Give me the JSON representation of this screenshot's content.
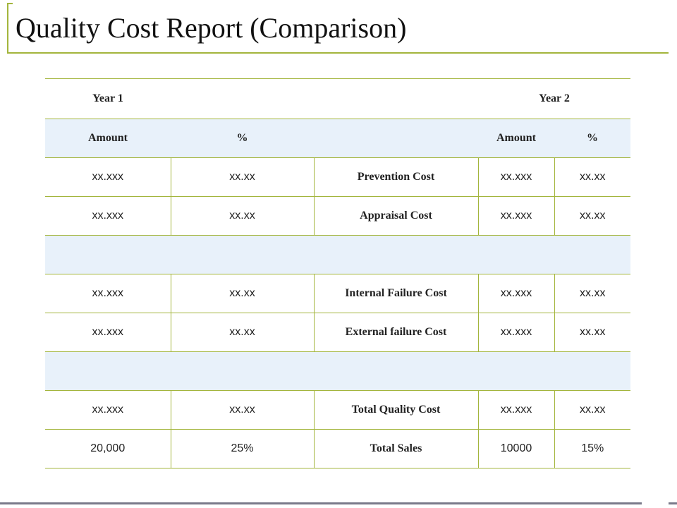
{
  "title": "Quality Cost Report (Comparison)",
  "headers": {
    "year1": "Year 1",
    "year2": "Year 2",
    "amount": "Amount",
    "percent": "%"
  },
  "rows": [
    {
      "y1_amount": "xx.xxx",
      "y1_pct": "xx.xx",
      "label": "Prevention Cost",
      "y2_amount": "xx.xxx",
      "y2_pct": "xx.xx"
    },
    {
      "y1_amount": "xx.xxx",
      "y1_pct": "xx.xx",
      "label": "Appraisal Cost",
      "y2_amount": "xx.xxx",
      "y2_pct": "xx.xx"
    },
    {
      "y1_amount": "xx.xxx",
      "y1_pct": "xx.xx",
      "label": "Internal Failure Cost",
      "y2_amount": "xx.xxx",
      "y2_pct": "xx.xx"
    },
    {
      "y1_amount": "xx.xxx",
      "y1_pct": "xx.xx",
      "label": "External failure Cost",
      "y2_amount": "xx.xxx",
      "y2_pct": "xx.xx"
    },
    {
      "y1_amount": "xx.xxx",
      "y1_pct": "xx.xx",
      "label": "Total Quality Cost",
      "y2_amount": "xx.xxx",
      "y2_pct": "xx.xx"
    },
    {
      "y1_amount": "20,000",
      "y1_pct": "25%",
      "label": "Total Sales",
      "y2_amount": "10000",
      "y2_pct": "15%"
    }
  ],
  "colors": {
    "accent": "#a3b53c",
    "shaded_row": "#e8f1fa",
    "bottom_rule": "#7a7a8a"
  }
}
